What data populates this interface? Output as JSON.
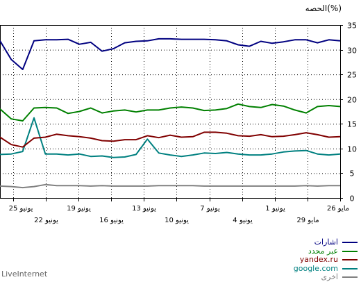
{
  "chart_data": {
    "type": "line",
    "ylabel": "الحصه(%)",
    "ylim": [
      0,
      35
    ],
    "yticks": [
      0,
      5,
      10,
      15,
      20,
      25,
      30,
      35
    ],
    "grid": true,
    "legend_position": "bottom-right",
    "xlim": [
      0,
      52
    ],
    "xtick_labels": [
      {
        "i": 52,
        "label": "26 مايو"
      },
      {
        "i": 47,
        "label": "29 مايو"
      },
      {
        "i": 42,
        "label": "1 يونيو"
      },
      {
        "i": 37,
        "label": "4 يونيو"
      },
      {
        "i": 32,
        "label": "7 يونيو"
      },
      {
        "i": 27,
        "label": "10 يونيو"
      },
      {
        "i": 22,
        "label": "13 يونيو"
      },
      {
        "i": 17,
        "label": "16 يونيو"
      },
      {
        "i": 12,
        "label": "19 يونيو"
      },
      {
        "i": 7,
        "label": "22 يونيو"
      },
      {
        "i": 2,
        "label": "25 يونيو"
      }
    ],
    "series": [
      {
        "name": "اشارات",
        "color": "#000080",
        "values": [
          31.8,
          32,
          31.4,
          32,
          32,
          31.6,
          31.3,
          31.7,
          30.7,
          31,
          31.8,
          32,
          32.1,
          32.1,
          32.1,
          32.2,
          32.2,
          31.8,
          31.7,
          31.4,
          30.2,
          29.7,
          31.5,
          31.1,
          32.1,
          32,
          32,
          31.8,
          26,
          28,
          31.8
        ]
      },
      {
        "name": "عبر محدد",
        "color": "#008000",
        "values": [
          18.5,
          18.7,
          18.5,
          17.2,
          17.8,
          18.6,
          18.9,
          18.3,
          18.5,
          19,
          18.1,
          17.8,
          17.7,
          18.2,
          18.4,
          18.2,
          17.8,
          17.8,
          17.4,
          17.8,
          17.6,
          17.2,
          18.2,
          17.5,
          17.1,
          18.2,
          18.3,
          18.2,
          15.6,
          16,
          18
        ]
      },
      {
        "name": "yandex.ru",
        "color": "#800000",
        "values": [
          12.4,
          12.3,
          12.8,
          13.2,
          12.8,
          12.5,
          12.4,
          12.8,
          12.5,
          12.6,
          13.1,
          13.3,
          13.3,
          12.4,
          12.3,
          12.7,
          12.2,
          12.6,
          11.8,
          11.8,
          11.5,
          11.6,
          12.1,
          12.4,
          12.6,
          12.9,
          12.3,
          12.1,
          10.3,
          10.8,
          12.3
        ]
      },
      {
        "name": "google.com",
        "color": "#008080",
        "values": [
          8.9,
          8.7,
          8.9,
          9.6,
          9.5,
          9.3,
          8.9,
          8.7,
          8.7,
          8.9,
          9.2,
          9,
          9.1,
          8.7,
          8.4,
          8.7,
          9.1,
          11.9,
          8.8,
          8.3,
          8.2,
          8.5,
          8.4,
          8.9,
          8.7,
          8.9,
          8.9,
          16.2,
          9.4,
          8.9,
          8.8
        ]
      },
      {
        "name": "اخرى",
        "color": "#808080",
        "values": [
          2.5,
          2.5,
          2.4,
          2.5,
          2.4,
          2.4,
          2.4,
          2.4,
          2.4,
          2.4,
          2.4,
          2.4,
          2.4,
          2.5,
          2.5,
          2.5,
          2.5,
          2.4,
          2.4,
          2.4,
          2.4,
          2.5,
          2.4,
          2.5,
          2.5,
          2.5,
          2.7,
          2.3,
          2.1,
          2.3,
          2.4
        ]
      }
    ]
  },
  "footer": "LiveInternet"
}
